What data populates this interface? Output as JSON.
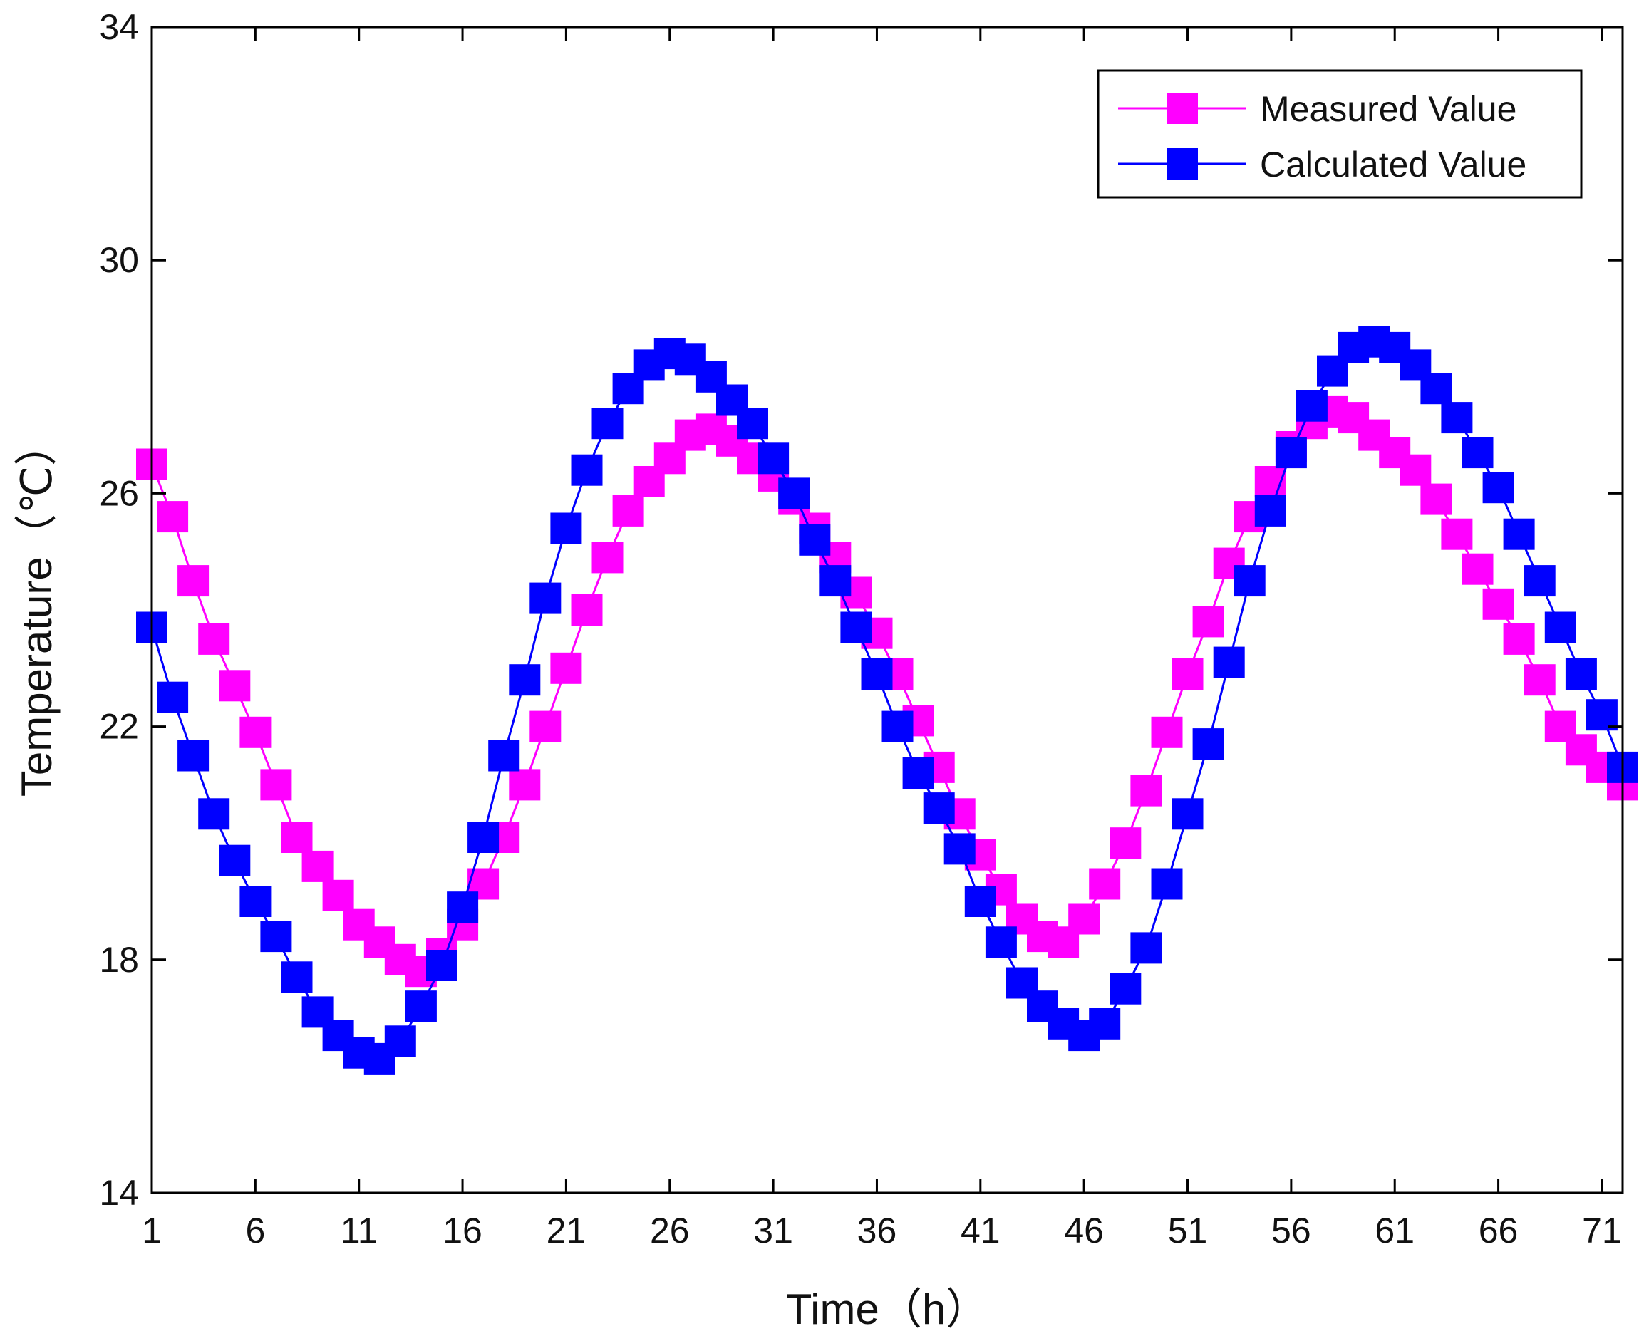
{
  "chart_data": {
    "type": "line",
    "title": "",
    "xlabel": "Time（h）",
    "ylabel": "Temperature（℃）",
    "xlim": [
      1,
      72
    ],
    "ylim": [
      14,
      34
    ],
    "xticks": [
      1,
      6,
      11,
      16,
      21,
      26,
      31,
      36,
      41,
      46,
      51,
      56,
      61,
      66,
      71
    ],
    "yticks": [
      14,
      18,
      22,
      26,
      30,
      34
    ],
    "grid": false,
    "legend_position": "top-right",
    "x": [
      1,
      2,
      3,
      4,
      5,
      6,
      7,
      8,
      9,
      10,
      11,
      12,
      13,
      14,
      15,
      16,
      17,
      18,
      19,
      20,
      21,
      22,
      23,
      24,
      25,
      26,
      27,
      28,
      29,
      30,
      31,
      32,
      33,
      34,
      35,
      36,
      37,
      38,
      39,
      40,
      41,
      42,
      43,
      44,
      45,
      46,
      47,
      48,
      49,
      50,
      51,
      52,
      53,
      54,
      55,
      56,
      57,
      58,
      59,
      60,
      61,
      62,
      63,
      64,
      65,
      66,
      67,
      68,
      69,
      70,
      71,
      72
    ],
    "series": [
      {
        "name": "Measured Value",
        "color": "#ff00ff",
        "marker": "square",
        "values": [
          26.5,
          25.6,
          24.5,
          23.5,
          22.7,
          21.9,
          21.0,
          20.1,
          19.6,
          19.1,
          18.6,
          18.3,
          18.0,
          17.8,
          18.1,
          18.6,
          19.3,
          20.1,
          21.0,
          22.0,
          23.0,
          24.0,
          24.9,
          25.7,
          26.2,
          26.6,
          27.0,
          27.1,
          26.9,
          26.6,
          26.3,
          25.9,
          25.4,
          24.9,
          24.3,
          23.6,
          22.9,
          22.1,
          21.3,
          20.5,
          19.8,
          19.2,
          18.7,
          18.4,
          18.3,
          18.7,
          19.3,
          20.0,
          20.9,
          21.9,
          22.9,
          23.8,
          24.8,
          25.6,
          26.2,
          26.8,
          27.2,
          27.4,
          27.3,
          27.0,
          26.7,
          26.4,
          25.9,
          25.3,
          24.7,
          24.1,
          23.5,
          22.8,
          22.0,
          21.6,
          21.3,
          21.0
        ]
      },
      {
        "name": "Calculated Value",
        "color": "#0000ff",
        "marker": "square",
        "values": [
          23.7,
          22.5,
          21.5,
          20.5,
          19.7,
          19.0,
          18.4,
          17.7,
          17.1,
          16.7,
          16.4,
          16.3,
          16.6,
          17.2,
          17.9,
          18.9,
          20.1,
          21.5,
          22.8,
          24.2,
          25.4,
          26.4,
          27.2,
          27.8,
          28.2,
          28.4,
          28.3,
          28.0,
          27.6,
          27.2,
          26.6,
          26.0,
          25.2,
          24.5,
          23.7,
          22.9,
          22.0,
          21.2,
          20.6,
          19.9,
          19.0,
          18.3,
          17.6,
          17.2,
          16.9,
          16.7,
          16.9,
          17.5,
          18.2,
          19.3,
          20.5,
          21.7,
          23.1,
          24.5,
          25.7,
          26.7,
          27.5,
          28.1,
          28.5,
          28.6,
          28.5,
          28.2,
          27.8,
          27.3,
          26.7,
          26.1,
          25.3,
          24.5,
          23.7,
          22.9,
          22.2,
          21.3
        ]
      }
    ]
  }
}
